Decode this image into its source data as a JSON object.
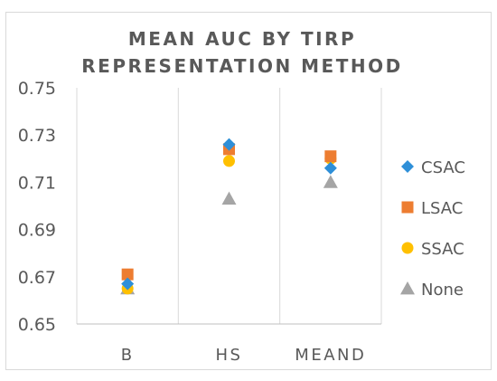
{
  "chart_data": {
    "type": "scatter",
    "title_lines": [
      "MEAN AUC BY TIRP",
      "REPRESENTATION METHOD"
    ],
    "categories": [
      "B",
      "HS",
      "MEAND"
    ],
    "y_ticks": [
      "0.65",
      "0.67",
      "0.69",
      "0.71",
      "0.73",
      "0.75"
    ],
    "ylim": [
      0.65,
      0.75
    ],
    "grid": "vertical category gridlines",
    "legend_position": "right",
    "series": [
      {
        "name": "CSAC",
        "marker": "diamond",
        "color": "#2e8fd8",
        "values": [
          0.667,
          0.726,
          0.716
        ]
      },
      {
        "name": "LSAC",
        "marker": "square",
        "color": "#ed7d31",
        "values": [
          0.671,
          0.724,
          0.721
        ]
      },
      {
        "name": "SSAC",
        "marker": "circle",
        "color": "#ffc000",
        "values": [
          0.665,
          0.719,
          0.72
        ]
      },
      {
        "name": "None",
        "marker": "triangle",
        "color": "#a5a5a5",
        "values": [
          0.665,
          0.703,
          0.71
        ]
      }
    ]
  }
}
